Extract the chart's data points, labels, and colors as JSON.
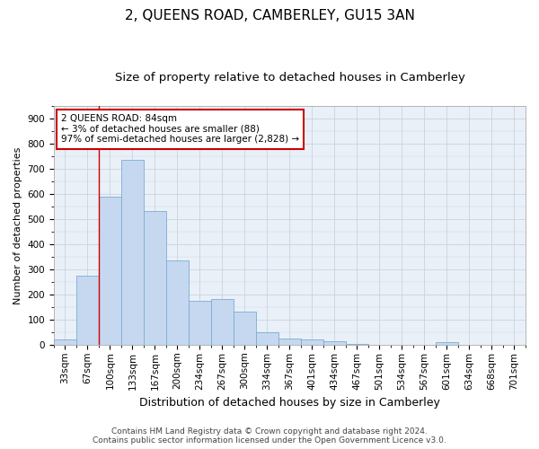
{
  "title": "2, QUEENS ROAD, CAMBERLEY, GU15 3AN",
  "subtitle": "Size of property relative to detached houses in Camberley",
  "xlabel": "Distribution of detached houses by size in Camberley",
  "ylabel": "Number of detached properties",
  "categories": [
    "33sqm",
    "67sqm",
    "100sqm",
    "133sqm",
    "167sqm",
    "200sqm",
    "234sqm",
    "267sqm",
    "300sqm",
    "334sqm",
    "367sqm",
    "401sqm",
    "434sqm",
    "467sqm",
    "501sqm",
    "534sqm",
    "567sqm",
    "601sqm",
    "634sqm",
    "668sqm",
    "701sqm"
  ],
  "values": [
    20,
    275,
    590,
    735,
    530,
    335,
    175,
    180,
    130,
    50,
    25,
    20,
    15,
    5,
    0,
    0,
    0,
    10,
    0,
    0,
    0
  ],
  "bar_color": "#c5d8f0",
  "bar_edgecolor": "#7aadd4",
  "grid_color": "#c8d4e0",
  "background_color": "#eaf0f8",
  "annotation_text": "2 QUEENS ROAD: 84sqm\n← 3% of detached houses are smaller (88)\n97% of semi-detached houses are larger (2,828) →",
  "annotation_box_facecolor": "#ffffff",
  "annotation_border_color": "#cc0000",
  "vline_x": 1.5,
  "vline_color": "#cc0000",
  "ylim": [
    0,
    950
  ],
  "yticks": [
    0,
    100,
    200,
    300,
    400,
    500,
    600,
    700,
    800,
    900
  ],
  "footer_line1": "Contains HM Land Registry data © Crown copyright and database right 2024.",
  "footer_line2": "Contains public sector information licensed under the Open Government Licence v3.0.",
  "title_fontsize": 11,
  "subtitle_fontsize": 9.5,
  "xlabel_fontsize": 9,
  "ylabel_fontsize": 8,
  "tick_fontsize": 7.5,
  "footer_fontsize": 6.5,
  "annotation_fontsize": 7.5
}
